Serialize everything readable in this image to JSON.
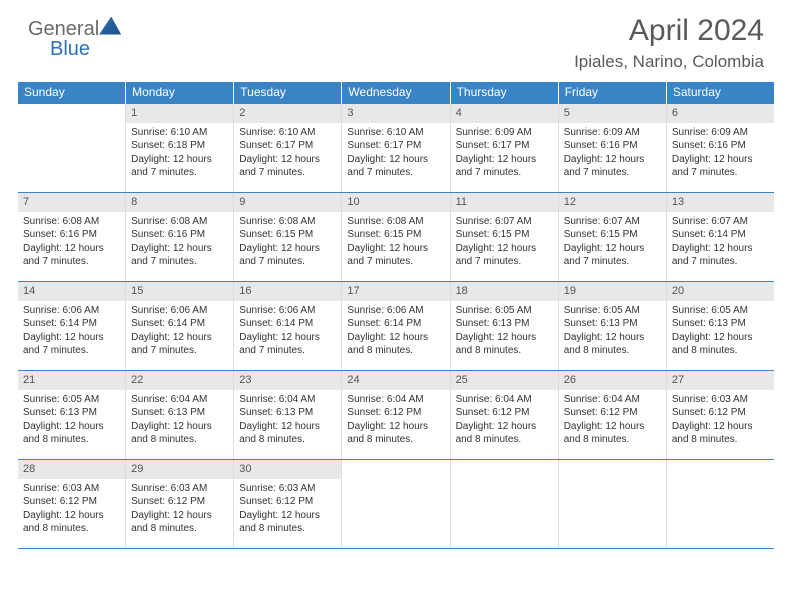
{
  "logo": {
    "word1": "General",
    "word2": "Blue"
  },
  "title": "April 2024",
  "location": "Ipiales, Narino, Colombia",
  "header_bg": "#3884c7",
  "weekdays": [
    "Sunday",
    "Monday",
    "Tuesday",
    "Wednesday",
    "Thursday",
    "Friday",
    "Saturday"
  ],
  "weeks": [
    [
      {
        "n": "",
        "sr": "",
        "ss": "",
        "dl": ""
      },
      {
        "n": "1",
        "sr": "6:10 AM",
        "ss": "6:18 PM",
        "dl": "12 hours and 7 minutes."
      },
      {
        "n": "2",
        "sr": "6:10 AM",
        "ss": "6:17 PM",
        "dl": "12 hours and 7 minutes."
      },
      {
        "n": "3",
        "sr": "6:10 AM",
        "ss": "6:17 PM",
        "dl": "12 hours and 7 minutes."
      },
      {
        "n": "4",
        "sr": "6:09 AM",
        "ss": "6:17 PM",
        "dl": "12 hours and 7 minutes."
      },
      {
        "n": "5",
        "sr": "6:09 AM",
        "ss": "6:16 PM",
        "dl": "12 hours and 7 minutes."
      },
      {
        "n": "6",
        "sr": "6:09 AM",
        "ss": "6:16 PM",
        "dl": "12 hours and 7 minutes."
      }
    ],
    [
      {
        "n": "7",
        "sr": "6:08 AM",
        "ss": "6:16 PM",
        "dl": "12 hours and 7 minutes."
      },
      {
        "n": "8",
        "sr": "6:08 AM",
        "ss": "6:16 PM",
        "dl": "12 hours and 7 minutes."
      },
      {
        "n": "9",
        "sr": "6:08 AM",
        "ss": "6:15 PM",
        "dl": "12 hours and 7 minutes."
      },
      {
        "n": "10",
        "sr": "6:08 AM",
        "ss": "6:15 PM",
        "dl": "12 hours and 7 minutes."
      },
      {
        "n": "11",
        "sr": "6:07 AM",
        "ss": "6:15 PM",
        "dl": "12 hours and 7 minutes."
      },
      {
        "n": "12",
        "sr": "6:07 AM",
        "ss": "6:15 PM",
        "dl": "12 hours and 7 minutes."
      },
      {
        "n": "13",
        "sr": "6:07 AM",
        "ss": "6:14 PM",
        "dl": "12 hours and 7 minutes."
      }
    ],
    [
      {
        "n": "14",
        "sr": "6:06 AM",
        "ss": "6:14 PM",
        "dl": "12 hours and 7 minutes."
      },
      {
        "n": "15",
        "sr": "6:06 AM",
        "ss": "6:14 PM",
        "dl": "12 hours and 7 minutes."
      },
      {
        "n": "16",
        "sr": "6:06 AM",
        "ss": "6:14 PM",
        "dl": "12 hours and 7 minutes."
      },
      {
        "n": "17",
        "sr": "6:06 AM",
        "ss": "6:14 PM",
        "dl": "12 hours and 8 minutes."
      },
      {
        "n": "18",
        "sr": "6:05 AM",
        "ss": "6:13 PM",
        "dl": "12 hours and 8 minutes."
      },
      {
        "n": "19",
        "sr": "6:05 AM",
        "ss": "6:13 PM",
        "dl": "12 hours and 8 minutes."
      },
      {
        "n": "20",
        "sr": "6:05 AM",
        "ss": "6:13 PM",
        "dl": "12 hours and 8 minutes."
      }
    ],
    [
      {
        "n": "21",
        "sr": "6:05 AM",
        "ss": "6:13 PM",
        "dl": "12 hours and 8 minutes."
      },
      {
        "n": "22",
        "sr": "6:04 AM",
        "ss": "6:13 PM",
        "dl": "12 hours and 8 minutes."
      },
      {
        "n": "23",
        "sr": "6:04 AM",
        "ss": "6:13 PM",
        "dl": "12 hours and 8 minutes."
      },
      {
        "n": "24",
        "sr": "6:04 AM",
        "ss": "6:12 PM",
        "dl": "12 hours and 8 minutes."
      },
      {
        "n": "25",
        "sr": "6:04 AM",
        "ss": "6:12 PM",
        "dl": "12 hours and 8 minutes."
      },
      {
        "n": "26",
        "sr": "6:04 AM",
        "ss": "6:12 PM",
        "dl": "12 hours and 8 minutes."
      },
      {
        "n": "27",
        "sr": "6:03 AM",
        "ss": "6:12 PM",
        "dl": "12 hours and 8 minutes."
      }
    ],
    [
      {
        "n": "28",
        "sr": "6:03 AM",
        "ss": "6:12 PM",
        "dl": "12 hours and 8 minutes."
      },
      {
        "n": "29",
        "sr": "6:03 AM",
        "ss": "6:12 PM",
        "dl": "12 hours and 8 minutes."
      },
      {
        "n": "30",
        "sr": "6:03 AM",
        "ss": "6:12 PM",
        "dl": "12 hours and 8 minutes."
      },
      {
        "n": "",
        "sr": "",
        "ss": "",
        "dl": ""
      },
      {
        "n": "",
        "sr": "",
        "ss": "",
        "dl": ""
      },
      {
        "n": "",
        "sr": "",
        "ss": "",
        "dl": ""
      },
      {
        "n": "",
        "sr": "",
        "ss": "",
        "dl": ""
      }
    ]
  ],
  "labels": {
    "sunrise": "Sunrise:",
    "sunset": "Sunset:",
    "daylight": "Daylight:"
  }
}
